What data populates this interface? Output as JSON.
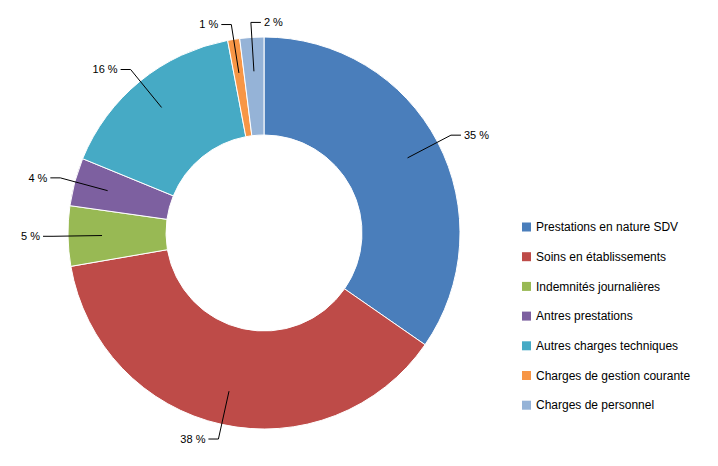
{
  "chart_data": {
    "type": "donut",
    "categories": [
      "Prestations en nature SDV",
      "Soins en établissements",
      "Indemnités journalières",
      "Antres prestations",
      "Autres charges techniques",
      "Charges de gestion courante",
      "Charges de personnel"
    ],
    "values": [
      35,
      38,
      5,
      4,
      16,
      1,
      2
    ],
    "value_labels": [
      "35 %",
      "38 %",
      "5 %",
      "4 %",
      "16 %",
      "1 %",
      "2 %"
    ],
    "colors": [
      "#4a7ebb",
      "#be4b48",
      "#98b954",
      "#7d60a0",
      "#46aac5",
      "#f79646",
      "#95b3d7"
    ],
    "legend": "right",
    "data_labels": true
  }
}
